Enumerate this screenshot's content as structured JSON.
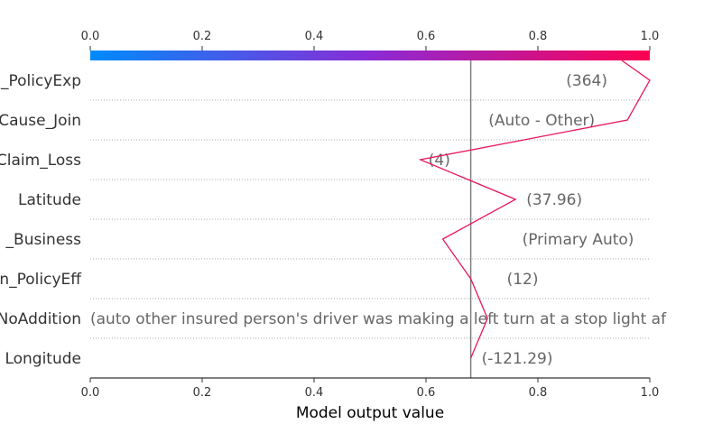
{
  "chart_data": {
    "type": "line",
    "xlabel": "Model output value",
    "xlim": [
      0.0,
      1.0
    ],
    "xticks": [
      "0.0",
      "0.2",
      "0.4",
      "0.6",
      "0.8",
      "1.0"
    ],
    "base_value": 0.68,
    "colorbar": {
      "from": "#008bfb",
      "mid": "#8a2bd6",
      "to": "#ff0052"
    },
    "line_color": "#e8175d",
    "rows": [
      {
        "feature": "_PolicyExp",
        "value_label": "(364)"
      },
      {
        "feature": "Cause_Join",
        "value_label": "(Auto - Other)"
      },
      {
        "feature": "Claim_Loss",
        "value_label": "(4)"
      },
      {
        "feature": "Latitude",
        "value_label": "(37.96)"
      },
      {
        "feature": "_Business",
        "value_label": "(Primary Auto)"
      },
      {
        "feature": "n_PolicyEff",
        "value_label": "(12)"
      },
      {
        "feature": "NoAddition",
        "value_label": "(auto   other   insured person's driver was making a left turn at a stop light af"
      },
      {
        "feature": "Longitude",
        "value_label": "(-121.29)"
      }
    ],
    "path": [
      {
        "x": 0.95,
        "y": "top"
      },
      {
        "x": 1.0,
        "y": 0.5
      },
      {
        "x": 0.96,
        "y": 1.5
      },
      {
        "x": 0.59,
        "y": 2.5
      },
      {
        "x": 0.76,
        "y": 3.5
      },
      {
        "x": 0.63,
        "y": 4.5
      },
      {
        "x": 0.68,
        "y": 5.5
      },
      {
        "x": 0.71,
        "y": 6.5
      },
      {
        "x": 0.68,
        "y": 7.5
      }
    ]
  }
}
